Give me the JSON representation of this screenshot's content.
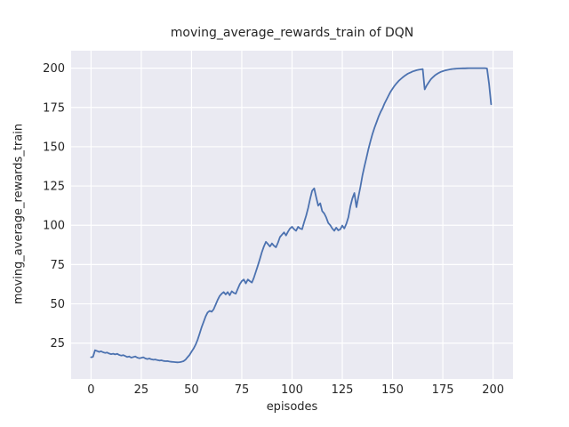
{
  "chart_data": {
    "type": "line",
    "title": "moving_average_rewards_train of DQN",
    "xlabel": "episodes",
    "ylabel": "moving_average_rewards_train",
    "x_start": 0,
    "x_step": 1,
    "xticks": [
      0,
      25,
      50,
      75,
      100,
      125,
      150,
      175,
      200
    ],
    "yticks": [
      25,
      50,
      75,
      100,
      125,
      150,
      175,
      200
    ],
    "xlim": [
      -9.9,
      209.9
    ],
    "ylim": [
      2.2,
      211.1
    ],
    "grid": true,
    "legend_position": "none",
    "colors": {
      "line": "#4c72b0",
      "axes_background": "#eaeaf2",
      "grid": "#ffffff",
      "text": "#262626",
      "figure_background": "#ffffff"
    },
    "values": [
      16.0,
      16.3,
      20.5,
      20.0,
      19.4,
      19.8,
      19.2,
      18.8,
      19.0,
      18.4,
      18.0,
      18.3,
      17.8,
      18.2,
      17.5,
      17.1,
      17.4,
      16.8,
      16.2,
      16.5,
      15.8,
      16.1,
      16.5,
      15.8,
      15.4,
      15.7,
      16.0,
      15.3,
      14.9,
      15.2,
      14.7,
      14.4,
      14.6,
      14.2,
      13.9,
      14.1,
      13.7,
      13.5,
      13.6,
      13.3,
      13.1,
      13.0,
      12.9,
      12.8,
      12.9,
      13.1,
      13.5,
      14.5,
      16.0,
      17.5,
      19.5,
      21.5,
      24.0,
      27.0,
      31.0,
      35.0,
      38.5,
      42.0,
      44.5,
      45.5,
      45.0,
      46.5,
      49.5,
      52.5,
      55.0,
      56.5,
      57.5,
      56.0,
      57.5,
      55.5,
      58.0,
      57.0,
      56.5,
      59.5,
      62.5,
      64.5,
      65.5,
      63.0,
      65.5,
      64.5,
      63.5,
      66.5,
      70.5,
      74.5,
      78.5,
      83.0,
      86.5,
      89.5,
      88.0,
      86.5,
      88.5,
      87.0,
      86.0,
      89.0,
      92.5,
      94.0,
      95.5,
      93.5,
      96.0,
      98.0,
      99.0,
      97.5,
      96.5,
      99.0,
      98.0,
      97.5,
      102.0,
      106.0,
      111.0,
      117.0,
      122.0,
      123.5,
      118.0,
      112.5,
      114.0,
      109.0,
      107.5,
      105.0,
      101.5,
      100.0,
      98.0,
      96.5,
      98.5,
      96.8,
      97.5,
      99.8,
      98.0,
      101.0,
      105.0,
      112.0,
      117.0,
      120.5,
      111.5,
      118.0,
      124.5,
      131.5,
      137.5,
      143.0,
      148.5,
      153.5,
      158.0,
      162.0,
      165.5,
      169.0,
      172.0,
      174.5,
      177.5,
      180.0,
      182.5,
      185.0,
      187.0,
      188.8,
      190.4,
      191.8,
      193.0,
      194.1,
      195.1,
      196.0,
      196.7,
      197.3,
      197.9,
      198.3,
      198.7,
      199.0,
      199.2,
      199.4,
      186.5,
      189.0,
      191.0,
      192.8,
      194.2,
      195.3,
      196.2,
      197.0,
      197.6,
      198.1,
      198.5,
      198.8,
      199.1,
      199.3,
      199.5,
      199.6,
      199.7,
      199.8,
      199.85,
      199.9,
      199.9,
      199.95,
      200.0,
      200.0,
      200.0,
      200.0,
      200.0,
      200.0,
      200.0,
      200.0,
      200.0,
      199.8,
      190.0,
      177.0
    ]
  }
}
